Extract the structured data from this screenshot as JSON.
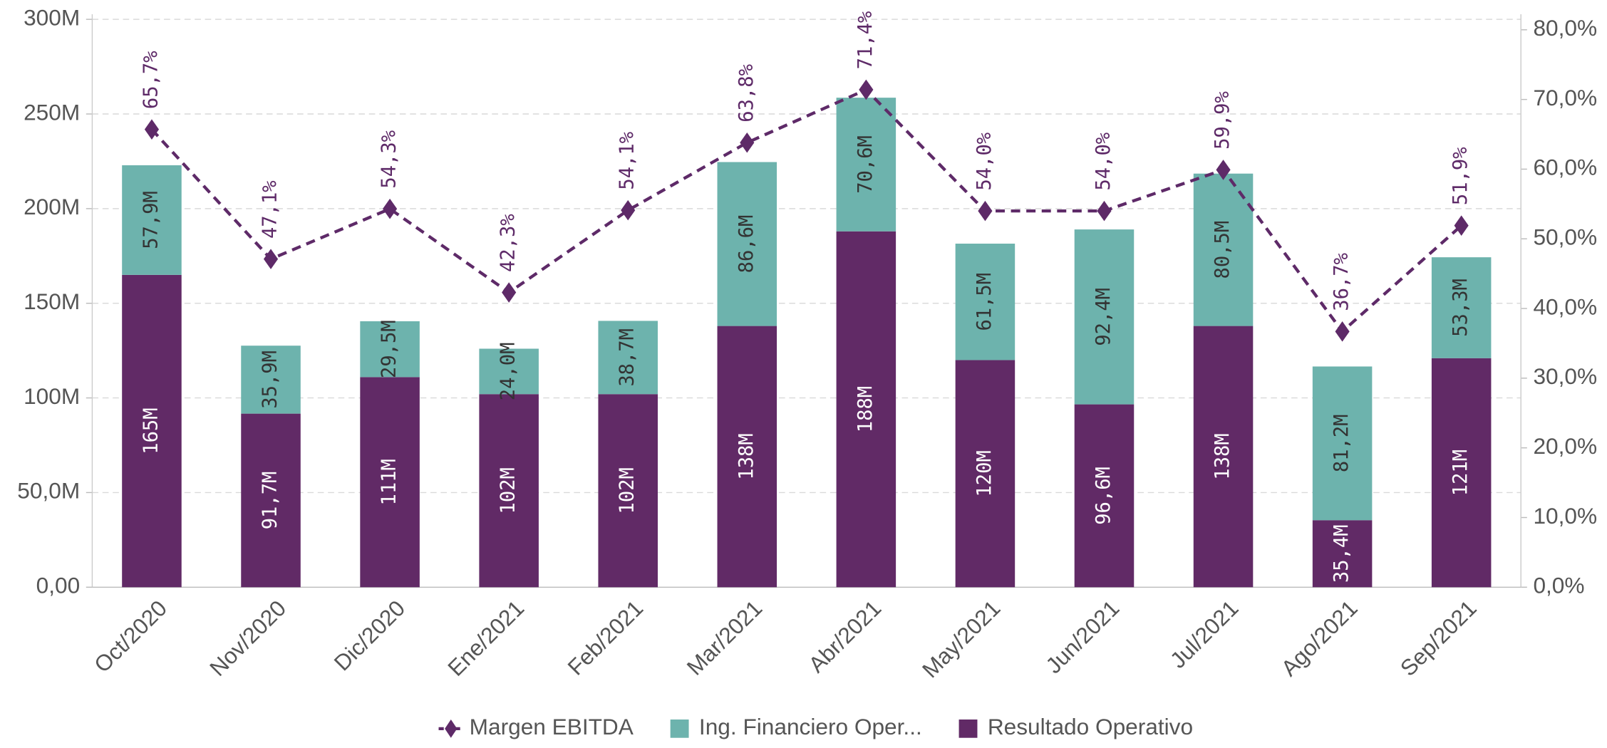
{
  "chart_data": {
    "type": "bar",
    "stacked": true,
    "grid": true,
    "legend": "bottom",
    "categories": [
      "Oct/2020",
      "Nov/2020",
      "Dic/2020",
      "Ene/2021",
      "Feb/2021",
      "Mar/2021",
      "Abr/2021",
      "May/2021",
      "Jun/2021",
      "Jul/2021",
      "Ago/2021",
      "Sep/2021"
    ],
    "series": [
      {
        "name": "Margen EBITDA",
        "type": "line",
        "axis": "y2",
        "color": "#5e2a68",
        "values": [
          65.7,
          47.1,
          54.3,
          42.3,
          54.1,
          63.8,
          71.4,
          54.0,
          54.0,
          59.9,
          36.7,
          51.9
        ],
        "value_labels": [
          "65,7%",
          "47,1%",
          "54,3%",
          "42,3%",
          "54,1%",
          "63,8%",
          "71,4%",
          "54,0%",
          "54,0%",
          "59,9%",
          "36,7%",
          "51,9%"
        ]
      },
      {
        "name": "Ing. Financiero Oper...",
        "type": "bar",
        "color": "#6db3ad",
        "values": [
          57900000,
          35900000,
          29500000,
          24000000,
          38700000,
          86600000,
          70600000,
          61500000,
          92400000,
          80500000,
          81200000,
          53300000
        ],
        "value_labels": [
          "57,9M",
          "35,9M",
          "29,5M",
          "24,0M",
          "38,7M",
          "86,6M",
          "70,6M",
          "61,5M",
          "92,4M",
          "80,5M",
          "81,2M",
          "53,3M"
        ]
      },
      {
        "name": "Resultado Operativo",
        "type": "bar",
        "color": "#612a66",
        "values": [
          165000000,
          91700000,
          111000000,
          102000000,
          102000000,
          138000000,
          188000000,
          120000000,
          96600000,
          138000000,
          35400000,
          121000000
        ],
        "value_labels": [
          "165M",
          "91,7M",
          "111M",
          "102M",
          "102M",
          "138M",
          "188M",
          "120M",
          "96,6M",
          "138M",
          "35,4M",
          "121M"
        ]
      }
    ],
    "ylim": [
      0,
      300000000
    ],
    "yticks": [
      {
        "value": 0,
        "label": "0,00"
      },
      {
        "value": 50000000,
        "label": "50,0M"
      },
      {
        "value": 100000000,
        "label": "100M"
      },
      {
        "value": 150000000,
        "label": "150M"
      },
      {
        "value": 200000000,
        "label": "200M"
      },
      {
        "value": 250000000,
        "label": "250M"
      },
      {
        "value": 300000000,
        "label": "300M"
      }
    ],
    "y2lim": [
      0,
      81.5
    ],
    "y2ticks": [
      {
        "value": 0,
        "label": "0,0%"
      },
      {
        "value": 10,
        "label": "10,0%"
      },
      {
        "value": 20,
        "label": "20,0%"
      },
      {
        "value": 30,
        "label": "30,0%"
      },
      {
        "value": 40,
        "label": "40,0%"
      },
      {
        "value": 50,
        "label": "50,0%"
      },
      {
        "value": 60,
        "label": "60,0%"
      },
      {
        "value": 70,
        "label": "70,0%"
      },
      {
        "value": 80,
        "label": "80,0%"
      }
    ]
  }
}
